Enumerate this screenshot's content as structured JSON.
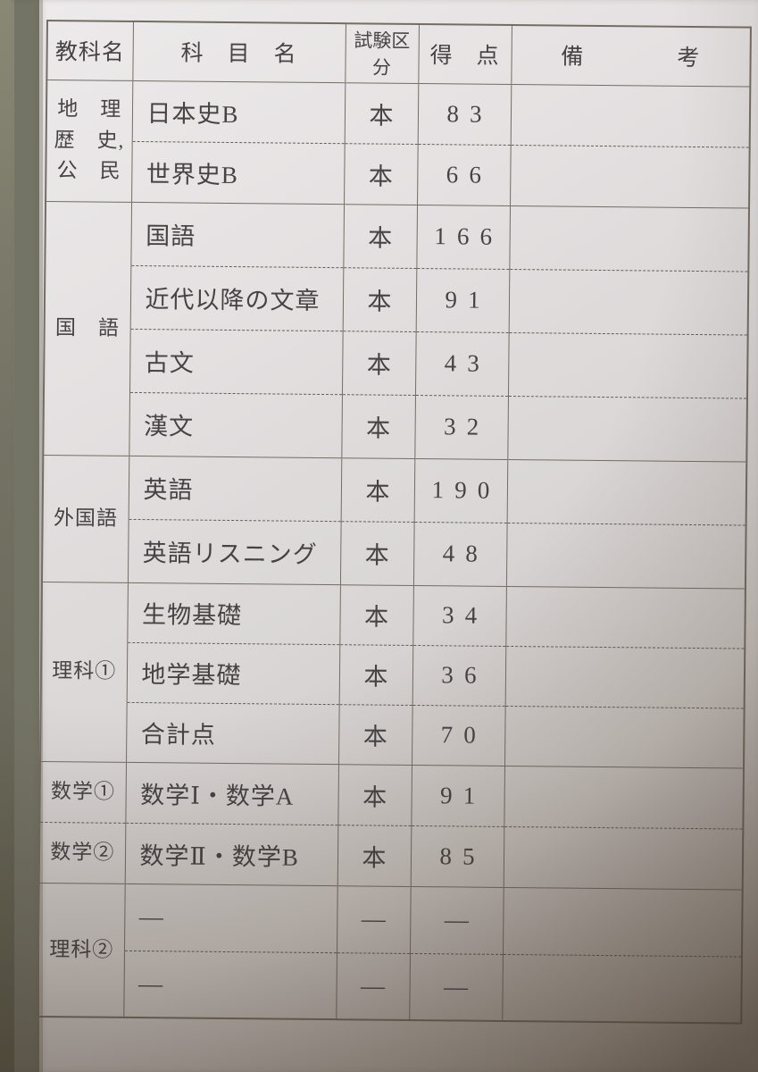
{
  "report": {
    "header": {
      "subject_group": "教科名",
      "subject_name": "科　目　名",
      "exam_division": "試験区分",
      "score": "得　点",
      "remarks": "備　　　　考"
    },
    "sections": [
      {
        "category": "地　理\n歴　史,\n公　民",
        "rows": [
          {
            "subject": "日本史B",
            "division": "本",
            "score": "83",
            "remarks": ""
          },
          {
            "subject": "世界史B",
            "division": "本",
            "score": "66",
            "remarks": ""
          }
        ]
      },
      {
        "category": "国　語",
        "rows": [
          {
            "subject": "国語",
            "division": "本",
            "score": "166",
            "remarks": ""
          },
          {
            "subject": "近代以降の文章",
            "division": "本",
            "score": "91",
            "remarks": ""
          },
          {
            "subject": "古文",
            "division": "本",
            "score": "43",
            "remarks": ""
          },
          {
            "subject": "漢文",
            "division": "本",
            "score": "32",
            "remarks": ""
          }
        ]
      },
      {
        "category": "外国語",
        "rows": [
          {
            "subject": "英語",
            "division": "本",
            "score": "190",
            "remarks": ""
          },
          {
            "subject": "英語リスニング",
            "division": "本",
            "score": "48",
            "remarks": ""
          }
        ]
      },
      {
        "category": "理科①",
        "rows": [
          {
            "subject": "生物基礎",
            "division": "本",
            "score": "34",
            "remarks": ""
          },
          {
            "subject": "地学基礎",
            "division": "本",
            "score": "36",
            "remarks": ""
          },
          {
            "subject": "合計点",
            "division": "本",
            "score": "70",
            "remarks": ""
          }
        ]
      },
      {
        "category": "数学①",
        "rows": [
          {
            "subject": "数学Ⅰ・数学A",
            "division": "本",
            "score": "91",
            "remarks": ""
          }
        ]
      },
      {
        "category": "数学②",
        "rows": [
          {
            "subject": "数学Ⅱ・数学B",
            "division": "本",
            "score": "85",
            "remarks": ""
          }
        ]
      },
      {
        "category": "理科②",
        "rows": [
          {
            "subject": "—",
            "division": "—",
            "score": "—",
            "remarks": ""
          },
          {
            "subject": "—",
            "division": "—",
            "score": "—",
            "remarks": ""
          }
        ]
      }
    ]
  },
  "colors": {
    "paper": "#dedadb",
    "line": "#6f675e",
    "ink": "#3f3b3d",
    "page_edge": "#e6e2cf",
    "backdrop": "#6e6e60"
  }
}
